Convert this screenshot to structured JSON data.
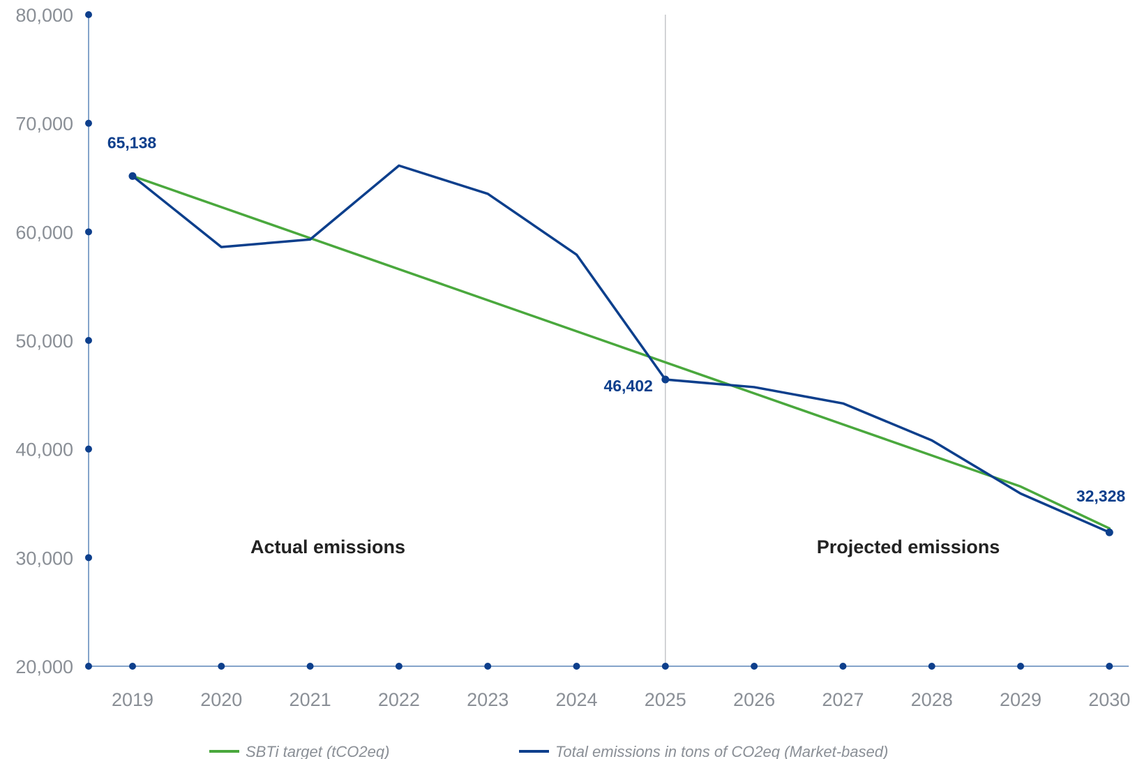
{
  "chart_data": {
    "type": "line",
    "x": [
      "2019",
      "2020",
      "2021",
      "2022",
      "2023",
      "2024",
      "2025",
      "2026",
      "2027",
      "2028",
      "2029",
      "2030"
    ],
    "ylim": [
      20000,
      80000
    ],
    "yticks": [
      "20,000",
      "30,000",
      "40,000",
      "50,000",
      "60,000",
      "70,000",
      "80,000"
    ],
    "ytick_values": [
      20000,
      30000,
      40000,
      50000,
      60000,
      70000,
      80000
    ],
    "series": [
      {
        "name": "SBTi target (tCO2eq)",
        "color": "#4aa83d",
        "values": [
          65138,
          62279,
          59420,
          56561,
          53702,
          50843,
          47984,
          45125,
          42266,
          39407,
          36548,
          32689
        ]
      },
      {
        "name": "Total emissions in tons of CO2eq (Market-based)",
        "color": "#0d3f8c",
        "values": [
          65138,
          58600,
          59300,
          66100,
          63500,
          57900,
          46402,
          45700,
          44200,
          40800,
          35900,
          32328
        ]
      }
    ],
    "data_labels": [
      {
        "text": "65,138",
        "index": 0
      },
      {
        "text": "46,402",
        "index": 6
      },
      {
        "text": "32,328",
        "index": 11
      }
    ],
    "divider_at": "2025",
    "annotations": [
      "Actual emissions",
      "Projected emissions"
    ],
    "legend_position": "bottom",
    "grid": false
  }
}
